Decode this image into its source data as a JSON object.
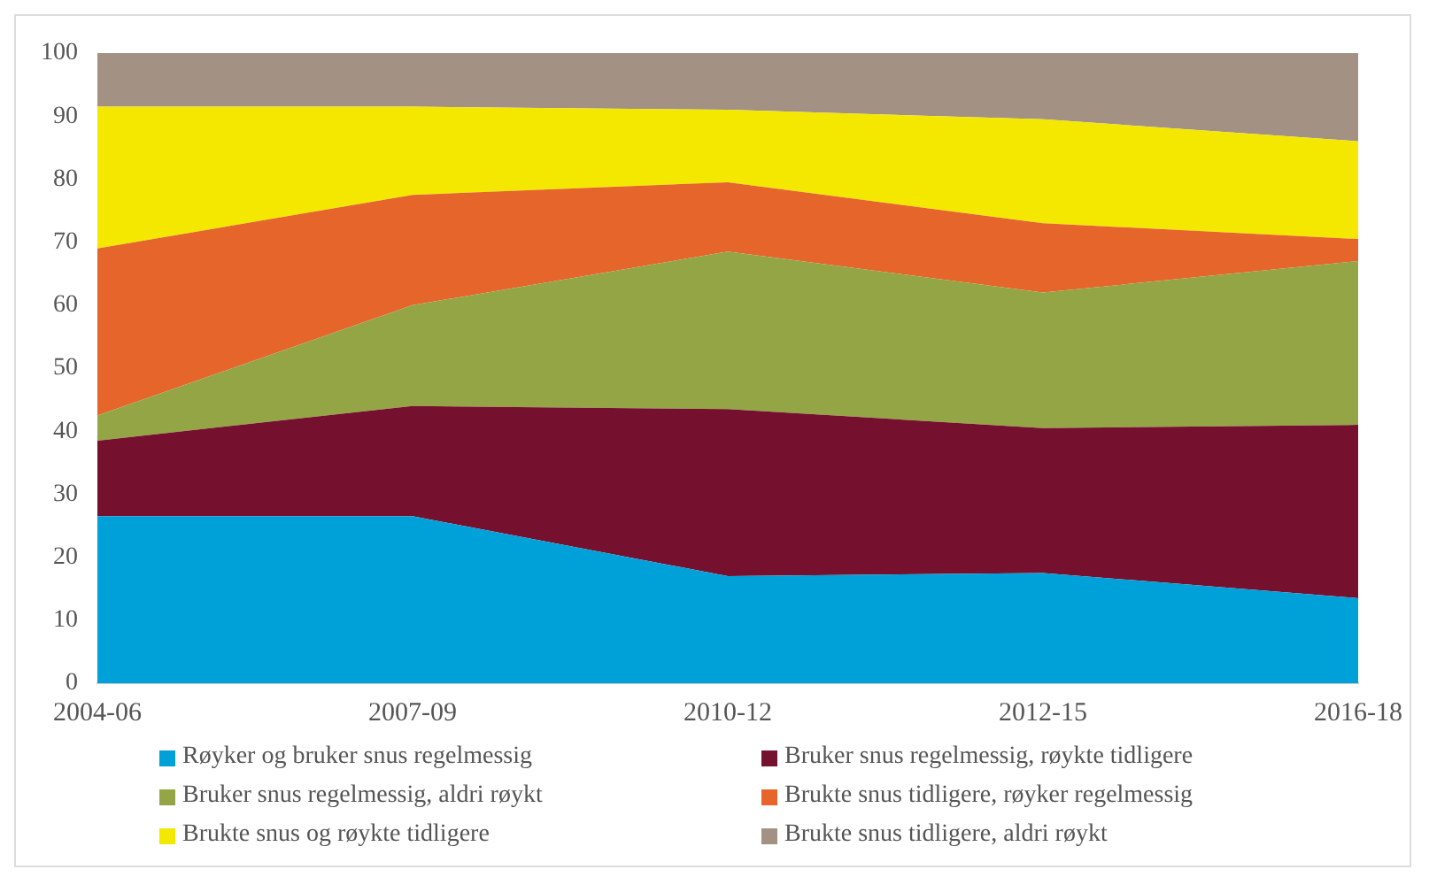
{
  "chart_data": {
    "type": "area",
    "stacked": true,
    "categories": [
      "2004-06",
      "2007-09",
      "2010-12",
      "2012-15",
      "2016-18"
    ],
    "ylim": [
      0,
      100
    ],
    "yticks": [
      0,
      10,
      20,
      30,
      40,
      50,
      60,
      70,
      80,
      90,
      100
    ],
    "grid": false,
    "legend": "bottom",
    "series": [
      {
        "name": "Røyker og bruker snus regelmessig",
        "color": "#00a0d8",
        "values": [
          26.5,
          26.5,
          17,
          17.5,
          13.5
        ]
      },
      {
        "name": "Bruker snus regelmessig, røykte tidligere",
        "color": "#76102f",
        "values": [
          12,
          17.5,
          26.5,
          23,
          27.5
        ]
      },
      {
        "name": "Bruker snus regelmessig, aldri røykt",
        "color": "#94a546",
        "values": [
          4,
          16,
          25,
          21.5,
          26
        ]
      },
      {
        "name": "Brukte snus tidligere, røyker regelmessig",
        "color": "#e5652b",
        "values": [
          26.5,
          17.5,
          11,
          11,
          3.5
        ]
      },
      {
        "name": "Brukte snus og røykte tidligere",
        "color": "#f4e800",
        "values": [
          22.5,
          14,
          11.5,
          16.5,
          15.5
        ]
      },
      {
        "name": "Brukte snus tidligere, aldri røykt",
        "color": "#a39283",
        "values": [
          8.5,
          8.5,
          9,
          10.5,
          14
        ]
      }
    ]
  }
}
